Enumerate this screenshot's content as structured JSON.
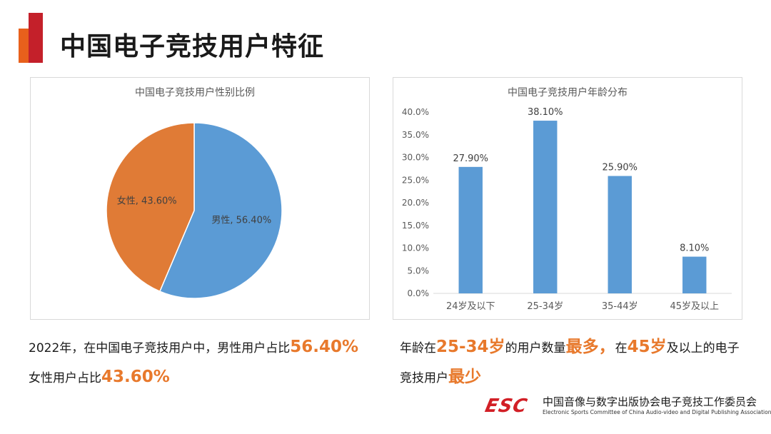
{
  "page": {
    "title": "中国电子竞技用户特征",
    "accent_colors": {
      "red": "#c4202a",
      "orange": "#e8601c",
      "highlight": "#e8792c"
    }
  },
  "chart_data": [
    {
      "type": "pie",
      "title": "中国电子竞技用户性别比例",
      "slices": [
        {
          "label": "男性",
          "value": 56.4,
          "data_label": "男性, 56.40%",
          "color": "#5b9bd5"
        },
        {
          "label": "女性",
          "value": 43.6,
          "data_label": "女性, 43.60%",
          "color": "#e07b36"
        }
      ],
      "legend": "none"
    },
    {
      "type": "bar",
      "title": "中国电子竞技用户年龄分布",
      "categories": [
        "24岁及以下",
        "25-34岁",
        "35-44岁",
        "45岁及以上"
      ],
      "values": [
        27.9,
        38.1,
        25.9,
        8.1
      ],
      "data_labels": [
        "27.90%",
        "38.10%",
        "25.90%",
        "8.10%"
      ],
      "ylim": [
        0,
        40
      ],
      "yticks": [
        "0.0%",
        "5.0%",
        "10.0%",
        "15.0%",
        "20.0%",
        "25.0%",
        "30.0%",
        "35.0%",
        "40.0%"
      ],
      "bar_color": "#5b9bd5",
      "grid": false,
      "xlabel": "",
      "ylabel": ""
    }
  ],
  "captions": {
    "left_line1_prefix": "2022年，在中国电子竞技用户中，男性用户占比",
    "left_line1_value": "56.40%",
    "left_line2_prefix": "女性用户占比",
    "left_line2_value": "43.60%",
    "right_p1": "年龄在",
    "right_h1": "25-34岁",
    "right_p2": "的用户数量",
    "right_h2": "最多，",
    "right_p3": "在",
    "right_h3": "45岁",
    "right_p4": "及以上的电子",
    "right_p5": "竞技用户",
    "right_h4": "最少"
  },
  "footer": {
    "logo_text": "ESC",
    "org_cn": "中国音像与数字出版协会电子竞技工作委员会",
    "org_en": "Electronic Sports Committee of China Audio-video and Digital Publishing Association"
  }
}
